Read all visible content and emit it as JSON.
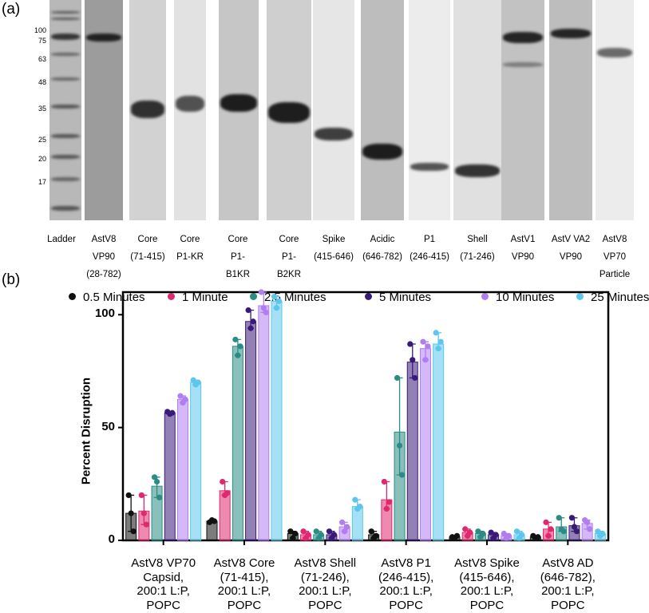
{
  "panel_a": {
    "label": "(a)",
    "ladder_marks": [
      "100",
      "75",
      "63",
      "48",
      "35",
      "25",
      "20",
      "17"
    ],
    "lanes": [
      {
        "lines": [
          "Ladder",
          "",
          ""
        ]
      },
      {
        "lines": [
          "AstV8",
          "VP90",
          "(28-782)"
        ]
      },
      {
        "lines": [
          "Core",
          "(71-415)",
          ""
        ]
      },
      {
        "lines": [
          "Core",
          "P1-KR",
          ""
        ]
      },
      {
        "lines": [
          "Core",
          "P1-",
          "B1KR"
        ]
      },
      {
        "lines": [
          "Core",
          "P1-",
          "B2KR"
        ]
      },
      {
        "lines": [
          "Spike",
          "(415-646)",
          ""
        ]
      },
      {
        "lines": [
          "Acidic",
          "(646-782)",
          ""
        ]
      },
      {
        "lines": [
          "P1",
          "(246-415)",
          ""
        ]
      },
      {
        "lines": [
          "Shell",
          "(71-246)",
          ""
        ]
      },
      {
        "lines": [
          "AstV1",
          "VP90",
          ""
        ]
      },
      {
        "lines": [
          "AstV VA2",
          "VP90",
          ""
        ]
      },
      {
        "lines": [
          "AstV8",
          "VP70",
          "Particle"
        ]
      }
    ]
  },
  "panel_b": {
    "label": "(b)"
  },
  "chart_data": {
    "type": "bar",
    "ylabel": "Percent Disruption",
    "ylim": [
      0,
      110
    ],
    "yticks": [
      "0",
      "50",
      "100"
    ],
    "legend_position": "top",
    "categories": [
      [
        "AstV8 VP70",
        "Capsid,",
        "200:1 L:P,",
        "POPC"
      ],
      [
        "AstV8 Core",
        "(71-415),",
        "200:1 L:P,",
        "POPC"
      ],
      [
        "AstV8 Shell",
        "(71-246),",
        "200:1 L:P,",
        "POPC"
      ],
      [
        "AstV8 P1",
        "(246-415),",
        "200:1 L:P,",
        "POPC"
      ],
      [
        "AstV8 Spike",
        "(415-646),",
        "200:1 L:P,",
        "POPC"
      ],
      [
        "AstV8 AD",
        "(646-782),",
        "200:1 L:P,",
        "POPC"
      ]
    ],
    "series": [
      {
        "name": "0.5 Minutes",
        "color": "#111111",
        "values": [
          12,
          8.5,
          3,
          2.5,
          1.5,
          1.5
        ],
        "points": [
          [
            20,
            12,
            4
          ],
          [
            8,
            9,
            8.5
          ],
          [
            4,
            1,
            3
          ],
          [
            4,
            1,
            2
          ],
          [
            1.5,
            1,
            2
          ],
          [
            2,
            1,
            1.5
          ]
        ]
      },
      {
        "name": "1 Minute",
        "color": "#e0286e",
        "values": [
          13,
          22,
          2.5,
          18,
          3.5,
          5
        ],
        "points": [
          [
            20,
            12,
            7
          ],
          [
            26,
            20,
            21
          ],
          [
            4,
            1,
            2.5
          ],
          [
            26,
            14,
            17
          ],
          [
            5,
            2,
            3.5
          ],
          [
            8,
            2,
            5
          ]
        ]
      },
      {
        "name": "2.5 Minutes",
        "color": "#2a8c84",
        "values": [
          24,
          86,
          2.5,
          48,
          3,
          6
        ],
        "points": [
          [
            28,
            26,
            19
          ],
          [
            89,
            82,
            86
          ],
          [
            4,
            1,
            2.5
          ],
          [
            72,
            42,
            29
          ],
          [
            4,
            1.5,
            3
          ],
          [
            10,
            5,
            4
          ]
        ]
      },
      {
        "name": "5 Minutes",
        "color": "#3a1a78",
        "values": [
          56.5,
          97,
          2.5,
          79,
          2.5,
          6.5
        ],
        "points": [
          [
            57,
            56,
            56.5
          ],
          [
            102,
            94,
            97
          ],
          [
            4,
            1,
            2.5
          ],
          [
            87,
            80,
            72
          ],
          [
            3.5,
            1,
            2.5
          ],
          [
            10,
            6,
            4
          ]
        ]
      },
      {
        "name": "10 Minutes",
        "color": "#b07ef0",
        "values": [
          62.5,
          104,
          6,
          85,
          2,
          7.5
        ],
        "points": [
          [
            64,
            61,
            62.5
          ],
          [
            110,
            103,
            101
          ],
          [
            8,
            4,
            6
          ],
          [
            88,
            80,
            86
          ],
          [
            3,
            1,
            2
          ],
          [
            9,
            8,
            5
          ]
        ]
      },
      {
        "name": "25 Minutes",
        "color": "#5cc6ec",
        "values": [
          70,
          106,
          15,
          87,
          2.5,
          3
        ],
        "points": [
          [
            71,
            69,
            70
          ],
          [
            108,
            103,
            106
          ],
          [
            18,
            14,
            15
          ],
          [
            92,
            85,
            88
          ],
          [
            4,
            1,
            2.5
          ],
          [
            4,
            2,
            3
          ]
        ]
      }
    ]
  }
}
